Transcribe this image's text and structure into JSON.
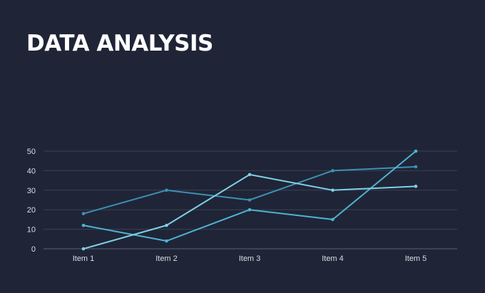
{
  "page": {
    "title": "DATA ANALYSIS",
    "background": "#1f2536"
  },
  "chart_data": {
    "type": "line",
    "title": "",
    "xlabel": "",
    "ylabel": "",
    "categories": [
      "Item 1",
      "Item 2",
      "Item 3",
      "Item 4",
      "Item 5"
    ],
    "ylim": [
      0,
      50
    ],
    "yticks": [
      0,
      10,
      20,
      30,
      40,
      50
    ],
    "grid": true,
    "legend": "none",
    "series": [
      {
        "values": [
          18,
          30,
          25,
          40,
          42
        ],
        "color": "#3f8fb5"
      },
      {
        "values": [
          12,
          4,
          20,
          15,
          50
        ],
        "color": "#4eb3d3"
      },
      {
        "values": [
          0,
          12,
          38,
          30,
          32
        ],
        "color": "#7fd0e6"
      }
    ]
  }
}
